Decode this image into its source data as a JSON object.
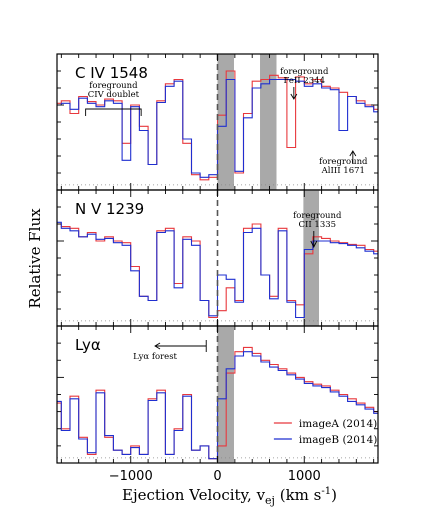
{
  "chart_data": {
    "type": "line",
    "title": "",
    "xlabel": "Ejection Velocity, v",
    "xlabel_sub": "ej",
    "xlabel_units": "(km s",
    "xlabel_units_sup": "-1",
    "xlabel_units_close": ")",
    "ylabel": "Relative Flux",
    "xlim": [
      -1850,
      1850
    ],
    "xticks": [
      -1000,
      0,
      1000
    ],
    "xtick_labels": [
      "−1000",
      "0",
      "1000"
    ],
    "legend": {
      "placement": "lower-right",
      "entries": [
        {
          "label": "imageA (2014)",
          "color": "#e8383d"
        },
        {
          "label": "imageB (2014)",
          "color": "#1f2fd0"
        }
      ]
    },
    "series_colors": {
      "imageA": "#e8383d",
      "imageB": "#1f2fd0"
    },
    "panels": [
      {
        "label": "C IV 1548",
        "ylim": [
          0,
          1.6
        ],
        "shaded_bands": [
          [
            0,
            190
          ],
          [
            490,
            680
          ]
        ],
        "annotations": [
          {
            "lines": [
              "foreground",
              "CIV doublet"
            ],
            "x": -1200,
            "y": 1.55
          },
          {
            "lines": [
              "foreground",
              "FeII 2344"
            ],
            "x": 1000,
            "y": 2.0
          },
          {
            "lines": [
              "foreground",
              "AlIII 1671"
            ],
            "x": 1450,
            "y": 0.22
          }
        ],
        "velocity": [
          -1850,
          -1750,
          -1650,
          -1550,
          -1450,
          -1350,
          -1250,
          -1150,
          -1050,
          -950,
          -850,
          -750,
          -650,
          -550,
          -450,
          -350,
          -250,
          -150,
          -50,
          50,
          150,
          250,
          350,
          450,
          550,
          650,
          750,
          850,
          950,
          1050,
          1150,
          1250,
          1350,
          1450,
          1550,
          1650,
          1750,
          1850
        ],
        "imageA": [
          1.02,
          1.05,
          0.9,
          1.1,
          1.04,
          1.0,
          1.07,
          1.05,
          0.55,
          1.0,
          0.75,
          0.3,
          1.05,
          1.25,
          1.3,
          0.55,
          0.18,
          0.12,
          0.15,
          0.88,
          1.4,
          0.2,
          0.9,
          1.28,
          1.3,
          1.35,
          1.32,
          0.5,
          1.33,
          1.25,
          1.3,
          1.22,
          1.2,
          1.15,
          1.1,
          1.05,
          1.0,
          0.95
        ],
        "imageB": [
          1.0,
          1.02,
          0.95,
          1.08,
          1.02,
          0.98,
          1.05,
          1.02,
          0.35,
          0.98,
          0.7,
          0.3,
          1.03,
          1.22,
          1.28,
          0.6,
          0.2,
          0.15,
          0.18,
          0.75,
          1.3,
          0.22,
          0.85,
          1.2,
          1.25,
          1.3,
          1.3,
          1.3,
          1.28,
          1.22,
          1.25,
          1.2,
          1.18,
          0.7,
          1.1,
          1.02,
          0.98,
          0.92
        ]
      },
      {
        "label": "N V 1239",
        "ylim": [
          0,
          1.6
        ],
        "shaded_bands": [
          [
            990,
            1170
          ]
        ],
        "annotations": [
          {
            "lines": [
              "foreground",
              "CII 1335"
            ],
            "x": 1150,
            "y": 1.6
          }
        ],
        "velocity": [
          -1850,
          -1750,
          -1650,
          -1550,
          -1450,
          -1350,
          -1250,
          -1150,
          -1050,
          -950,
          -850,
          -750,
          -650,
          -550,
          -450,
          -350,
          -250,
          -150,
          -50,
          50,
          150,
          250,
          350,
          450,
          550,
          650,
          750,
          850,
          950,
          1050,
          1150,
          1250,
          1350,
          1450,
          1550,
          1650,
          1750,
          1850
        ],
        "imageA": [
          1.2,
          1.17,
          1.15,
          1.05,
          1.1,
          1.0,
          1.05,
          1.0,
          0.98,
          0.7,
          0.35,
          0.3,
          1.12,
          1.15,
          0.5,
          1.05,
          1.0,
          0.3,
          0.1,
          0.18,
          0.45,
          0.3,
          1.15,
          1.2,
          0.6,
          0.35,
          1.15,
          0.3,
          0.25,
          0.85,
          1.05,
          1.03,
          1.0,
          0.98,
          0.96,
          0.95,
          0.9,
          0.88
        ],
        "imageB": [
          1.22,
          1.15,
          1.12,
          1.05,
          1.08,
          1.02,
          1.03,
          0.98,
          0.95,
          0.65,
          0.35,
          0.3,
          1.1,
          1.12,
          0.45,
          1.02,
          0.95,
          0.3,
          0.12,
          0.6,
          0.55,
          0.28,
          1.1,
          1.15,
          0.6,
          0.32,
          1.12,
          0.28,
          0.1,
          0.9,
          1.0,
          1.0,
          0.98,
          0.97,
          0.95,
          0.92,
          0.88,
          0.85
        ]
      },
      {
        "label": "Lyα",
        "ylim": [
          0,
          1.6
        ],
        "shaded_bands": [
          [
            0,
            190
          ]
        ],
        "annotations": [
          {
            "lines": [
              "Lyα forest"
            ],
            "x": -720,
            "y": 1.35,
            "arrow_from": -130,
            "arrow_to": -720
          }
        ],
        "velocity": [
          -1850,
          -1750,
          -1650,
          -1550,
          -1450,
          -1350,
          -1250,
          -1150,
          -1050,
          -950,
          -850,
          -750,
          -650,
          -550,
          -450,
          -350,
          -250,
          -150,
          -50,
          50,
          150,
          250,
          350,
          450,
          550,
          650,
          750,
          850,
          950,
          1050,
          1150,
          1250,
          1350,
          1450,
          1550,
          1650,
          1750,
          1850
        ],
        "imageA": [
          0.7,
          0.4,
          0.78,
          0.3,
          0.1,
          0.85,
          0.3,
          0.15,
          0.1,
          0.2,
          0.1,
          0.75,
          0.85,
          0.1,
          0.4,
          0.8,
          0.15,
          0.2,
          0.05,
          0.2,
          1.05,
          1.3,
          1.35,
          1.28,
          1.2,
          1.15,
          1.1,
          1.05,
          1.0,
          0.95,
          0.92,
          0.9,
          0.85,
          0.8,
          0.75,
          0.7,
          0.65,
          0.6
        ],
        "imageB": [
          0.72,
          0.38,
          0.75,
          0.28,
          0.12,
          0.82,
          0.32,
          0.15,
          0.1,
          0.18,
          0.1,
          0.73,
          0.82,
          0.1,
          0.38,
          0.78,
          0.15,
          0.2,
          0.05,
          0.75,
          1.1,
          1.25,
          1.3,
          1.25,
          1.18,
          1.12,
          1.08,
          1.03,
          0.98,
          0.93,
          0.9,
          0.88,
          0.83,
          0.78,
          0.72,
          0.68,
          0.63,
          0.58
        ]
      }
    ]
  }
}
